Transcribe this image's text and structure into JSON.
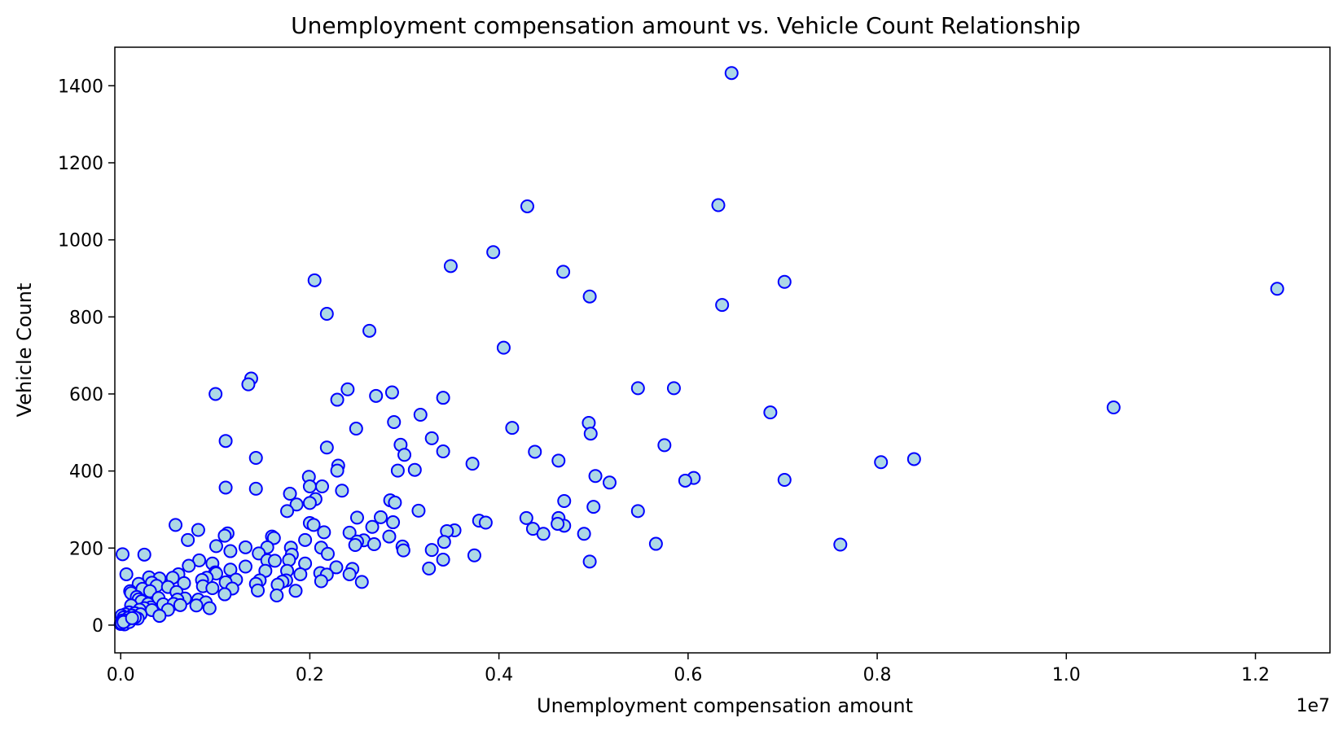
{
  "chart_data": {
    "type": "scatter",
    "title": "Unemployment compensation amount vs. Vehicle Count Relationship",
    "xlabel": "Unemployment compensation amount",
    "ylabel": "Vehicle Count",
    "x_offset_label": "1e7",
    "xlim": [
      -0.0062,
      1.2788
    ],
    "ylim": [
      -72,
      1500
    ],
    "x_ticks": [
      0.0,
      0.2,
      0.4,
      0.6,
      0.8,
      1.0,
      1.2
    ],
    "x_tick_labels": [
      "0.0",
      "0.2",
      "0.4",
      "0.6",
      "0.8",
      "1.0",
      "1.2"
    ],
    "y_ticks": [
      0,
      200,
      400,
      600,
      800,
      1000,
      1200,
      1400
    ],
    "y_tick_labels": [
      "0",
      "200",
      "400",
      "600",
      "800",
      "1000",
      "1200",
      "1400"
    ],
    "grid": false,
    "marker_face_color": "#add8e6",
    "marker_edge_color": "#0000ff",
    "points": [
      [
        0.646,
        1433
      ],
      [
        0.43,
        1087
      ],
      [
        0.632,
        1090
      ],
      [
        0.394,
        968
      ],
      [
        0.349,
        932
      ],
      [
        0.468,
        917
      ],
      [
        0.205,
        895
      ],
      [
        0.702,
        891
      ],
      [
        1.223,
        873
      ],
      [
        0.496,
        853
      ],
      [
        0.636,
        831
      ],
      [
        0.218,
        808
      ],
      [
        0.263,
        764
      ],
      [
        0.405,
        720
      ],
      [
        0.138,
        640
      ],
      [
        0.135,
        625
      ],
      [
        0.547,
        615
      ],
      [
        0.585,
        615
      ],
      [
        0.24,
        612
      ],
      [
        0.287,
        604
      ],
      [
        0.1003,
        600
      ],
      [
        0.27,
        595
      ],
      [
        0.229,
        585
      ],
      [
        0.341,
        590
      ],
      [
        1.05,
        565
      ],
      [
        0.687,
        552
      ],
      [
        0.317,
        546
      ],
      [
        0.495,
        525
      ],
      [
        0.289,
        527
      ],
      [
        0.414,
        512
      ],
      [
        0.249,
        510
      ],
      [
        0.497,
        497
      ],
      [
        0.329,
        485
      ],
      [
        0.111,
        478
      ],
      [
        0.296,
        468
      ],
      [
        0.575,
        467
      ],
      [
        0.218,
        461
      ],
      [
        0.341,
        451
      ],
      [
        0.438,
        450
      ],
      [
        0.3,
        442
      ],
      [
        0.143,
        434
      ],
      [
        0.839,
        431
      ],
      [
        0.463,
        427
      ],
      [
        0.804,
        423
      ],
      [
        0.372,
        419
      ],
      [
        0.23,
        414
      ],
      [
        0.311,
        403
      ],
      [
        0.293,
        401
      ],
      [
        0.229,
        401
      ],
      [
        0.199,
        385
      ],
      [
        0.502,
        387
      ],
      [
        0.606,
        382
      ],
      [
        0.702,
        377
      ],
      [
        0.597,
        375
      ],
      [
        0.517,
        370
      ],
      [
        0.213,
        360
      ],
      [
        0.2,
        360
      ],
      [
        0.111,
        357
      ],
      [
        0.143,
        354
      ],
      [
        0.234,
        349
      ],
      [
        0.179,
        341
      ],
      [
        0.206,
        327
      ],
      [
        0.469,
        322
      ],
      [
        0.285,
        324
      ],
      [
        0.2,
        317
      ],
      [
        0.29,
        318
      ],
      [
        0.186,
        313
      ],
      [
        0.5,
        307
      ],
      [
        0.315,
        297
      ],
      [
        0.547,
        296
      ],
      [
        0.176,
        296
      ],
      [
        0.379,
        271
      ],
      [
        0.429,
        278
      ],
      [
        0.463,
        278
      ],
      [
        0.386,
        266
      ],
      [
        0.25,
        279
      ],
      [
        0.275,
        280
      ],
      [
        0.288,
        267
      ],
      [
        0.2,
        265
      ],
      [
        0.204,
        260
      ],
      [
        0.058,
        260
      ],
      [
        0.469,
        258
      ],
      [
        0.266,
        255
      ],
      [
        0.462,
        263
      ],
      [
        0.436,
        250
      ],
      [
        0.082,
        247
      ],
      [
        0.353,
        246
      ],
      [
        0.345,
        244
      ],
      [
        0.215,
        241
      ],
      [
        0.242,
        240
      ],
      [
        0.447,
        237
      ],
      [
        0.49,
        237
      ],
      [
        0.113,
        238
      ],
      [
        0.11,
        232
      ],
      [
        0.16,
        230
      ],
      [
        0.284,
        230
      ],
      [
        0.162,
        226
      ],
      [
        0.071,
        221
      ],
      [
        0.195,
        221
      ],
      [
        0.257,
        220
      ],
      [
        0.25,
        217
      ],
      [
        0.342,
        216
      ],
      [
        0.268,
        210
      ],
      [
        0.248,
        208
      ],
      [
        0.566,
        211
      ],
      [
        0.761,
        209
      ],
      [
        0.101,
        205
      ],
      [
        0.298,
        204
      ],
      [
        0.132,
        202
      ],
      [
        0.155,
        202
      ],
      [
        0.212,
        201
      ],
      [
        0.18,
        201
      ],
      [
        0.299,
        194
      ],
      [
        0.329,
        195
      ],
      [
        0.116,
        192
      ],
      [
        0.146,
        186
      ],
      [
        0.181,
        183
      ],
      [
        0.219,
        185
      ],
      [
        0.002,
        184
      ],
      [
        0.025,
        183
      ],
      [
        0.374,
        181
      ],
      [
        0.155,
        168
      ],
      [
        0.163,
        167
      ],
      [
        0.083,
        168
      ],
      [
        0.178,
        169
      ],
      [
        0.341,
        170
      ],
      [
        0.496,
        165
      ],
      [
        0.097,
        160
      ],
      [
        0.195,
        160
      ],
      [
        0.228,
        150
      ],
      [
        0.072,
        154
      ],
      [
        0.132,
        152
      ],
      [
        0.326,
        147
      ],
      [
        0.116,
        144
      ],
      [
        0.176,
        141
      ],
      [
        0.153,
        141
      ],
      [
        0.245,
        146
      ],
      [
        0.006,
        132
      ],
      [
        0.1,
        137
      ],
      [
        0.061,
        132
      ],
      [
        0.211,
        135
      ],
      [
        0.101,
        134
      ],
      [
        0.19,
        132
      ],
      [
        0.242,
        132
      ],
      [
        0.218,
        131
      ],
      [
        0.03,
        124
      ],
      [
        0.041,
        121
      ],
      [
        0.055,
        123
      ],
      [
        0.091,
        123
      ],
      [
        0.122,
        118
      ],
      [
        0.147,
        116
      ],
      [
        0.175,
        116
      ],
      [
        0.086,
        117
      ],
      [
        0.171,
        113
      ],
      [
        0.212,
        114
      ],
      [
        0.255,
        112
      ],
      [
        0.019,
        107
      ],
      [
        0.033,
        110
      ],
      [
        0.067,
        109
      ],
      [
        0.111,
        111
      ],
      [
        0.143,
        107
      ],
      [
        0.166,
        105
      ],
      [
        0.038,
        102
      ],
      [
        0.05,
        99
      ],
      [
        0.023,
        94
      ],
      [
        0.087,
        101
      ],
      [
        0.097,
        96
      ],
      [
        0.118,
        95
      ],
      [
        0.145,
        90
      ],
      [
        0.185,
        89
      ],
      [
        0.031,
        88
      ],
      [
        0.059,
        86
      ],
      [
        0.01,
        88
      ],
      [
        0.011,
        83
      ],
      [
        0.165,
        77
      ],
      [
        0.11,
        80
      ],
      [
        0.017,
        73
      ],
      [
        0.04,
        70
      ],
      [
        0.068,
        69
      ],
      [
        0.019,
        67
      ],
      [
        0.082,
        66
      ],
      [
        0.06,
        66
      ],
      [
        0.022,
        62
      ],
      [
        0.09,
        59
      ],
      [
        0.029,
        55
      ],
      [
        0.045,
        54
      ],
      [
        0.056,
        55
      ],
      [
        0.063,
        52
      ],
      [
        0.011,
        51
      ],
      [
        0.08,
        51
      ],
      [
        0.032,
        46
      ],
      [
        0.025,
        44
      ],
      [
        0.02,
        40
      ],
      [
        0.05,
        40
      ],
      [
        0.033,
        39
      ],
      [
        0.094,
        44
      ],
      [
        0.009,
        33
      ],
      [
        0.015,
        31
      ],
      [
        0.005,
        28
      ],
      [
        0.021,
        28
      ],
      [
        0.001,
        25
      ],
      [
        0.012,
        25
      ],
      [
        0.041,
        24
      ],
      [
        0.003,
        20
      ],
      [
        0.008,
        19
      ],
      [
        0.018,
        17
      ],
      [
        0.011,
        15
      ],
      [
        0.002,
        12
      ],
      [
        0.006,
        10
      ],
      [
        0.001,
        6
      ],
      [
        0.0,
        3
      ],
      [
        0.004,
        2
      ],
      [
        0.009,
        8
      ],
      [
        0.001,
        5
      ],
      [
        0.005,
        12
      ],
      [
        0.003,
        8
      ],
      [
        0.015,
        20
      ],
      [
        0.012,
        18
      ]
    ]
  }
}
